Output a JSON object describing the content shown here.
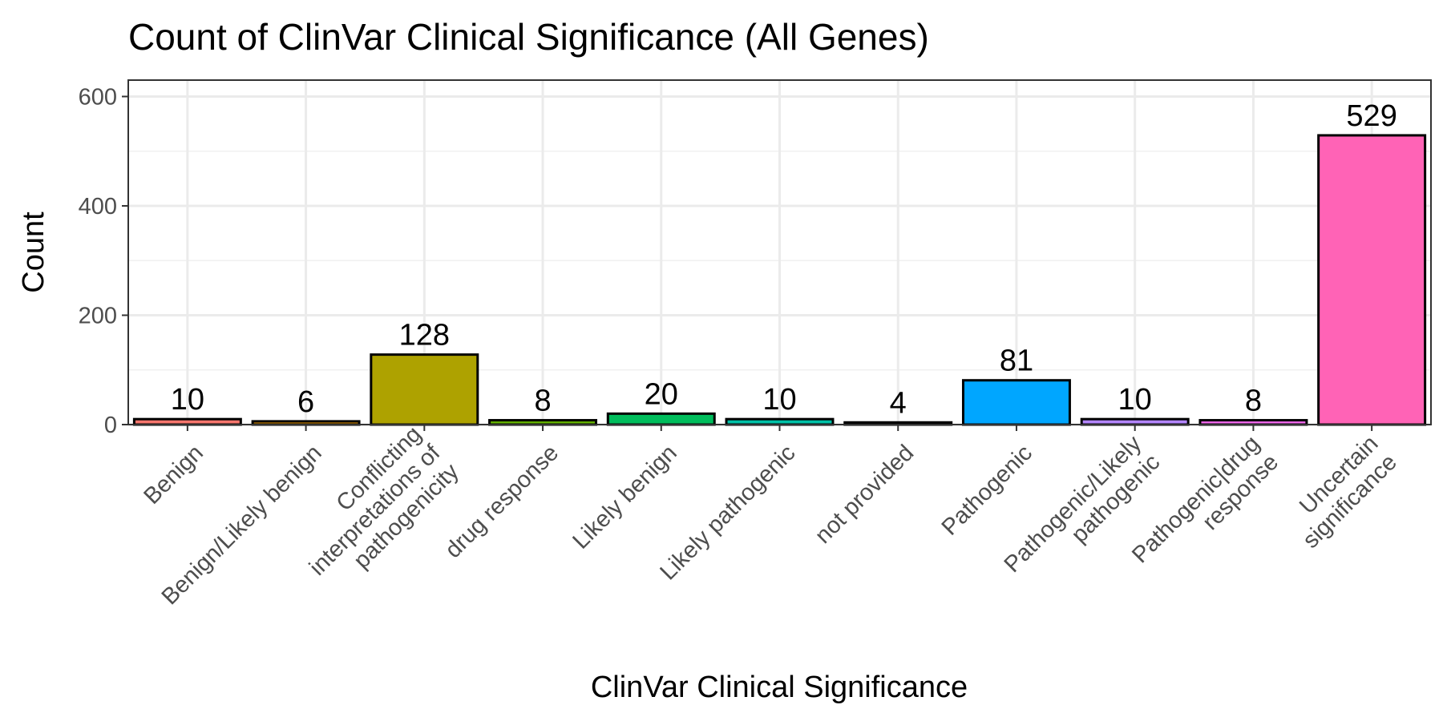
{
  "chart_data": {
    "type": "bar",
    "title": "Count of ClinVar Clinical Significance (All Genes)",
    "xlabel": "ClinVar Clinical Significance",
    "ylabel": "Count",
    "ylim": [
      0,
      630
    ],
    "yticks": [
      0,
      200,
      400,
      600
    ],
    "grid": true,
    "legend": "none",
    "categories": [
      "Benign",
      "Benign/Likely benign",
      "Conflicting interpretations of pathogenicity",
      "drug response",
      "Likely benign",
      "Likely pathogenic",
      "not provided",
      "Pathogenic",
      "Pathogenic/Likely pathogenic",
      "Pathogenic|drug response",
      "Uncertain significance"
    ],
    "category_lines": [
      [
        "Benign"
      ],
      [
        "Benign/Likely benign"
      ],
      [
        "Conflicting",
        "interpretations of",
        "pathogenicity"
      ],
      [
        "drug response"
      ],
      [
        "Likely benign"
      ],
      [
        "Likely pathogenic"
      ],
      [
        "not provided"
      ],
      [
        "Pathogenic"
      ],
      [
        "Pathogenic/Likely",
        "pathogenic"
      ],
      [
        "Pathogenic|drug",
        "response"
      ],
      [
        "Uncertain",
        "significance"
      ]
    ],
    "values": [
      10,
      6,
      128,
      8,
      20,
      10,
      4,
      81,
      10,
      8,
      529
    ],
    "colors": [
      "#F8766D",
      "#DB8E00",
      "#AEA200",
      "#64B200",
      "#00BD5C",
      "#00C1A7",
      "#00BADE",
      "#00A6FF",
      "#B385FF",
      "#EF67EB",
      "#FF63B6"
    ]
  }
}
